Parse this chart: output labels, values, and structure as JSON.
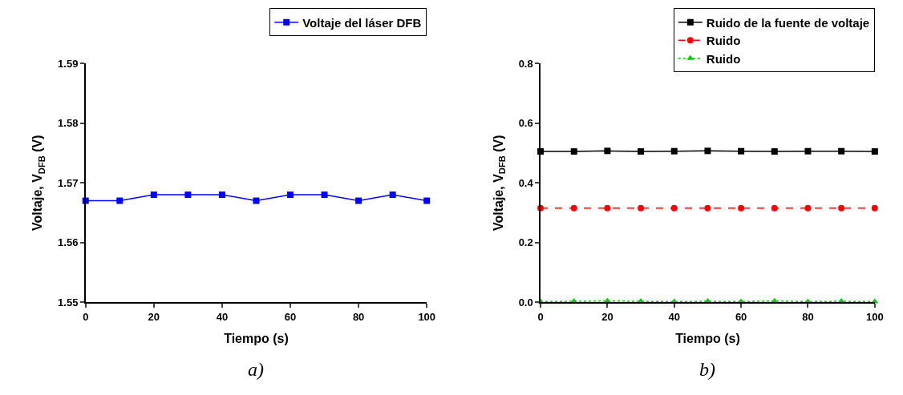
{
  "chart_data": [
    {
      "type": "line",
      "xlabel": "Tiempo (s)",
      "ylabel": "Voltaje, V$_{DFB}$ (V)",
      "annotations": [
        "a)"
      ],
      "x": [
        0,
        10,
        20,
        30,
        40,
        50,
        60,
        70,
        80,
        90,
        100
      ],
      "xlim": [
        0,
        100
      ],
      "xticks": [
        0,
        20,
        40,
        60,
        80,
        100
      ],
      "ylim": [
        1.55,
        1.59
      ],
      "yticks": [
        1.55,
        1.56,
        1.57,
        1.58,
        1.59
      ],
      "legend": "top right",
      "series": [
        {
          "name": "Voltaje del láser DFB",
          "color": "#0000ff",
          "marker": "square",
          "line_style": "solid",
          "values": [
            1.567,
            1.567,
            1.568,
            1.568,
            1.568,
            1.567,
            1.568,
            1.568,
            1.567,
            1.568,
            1.567
          ]
        }
      ]
    },
    {
      "type": "line",
      "xlabel": "Tiempo (s)",
      "ylabel": "Voltaje, V$_{DFB}$ (V)",
      "annotations": [
        "b)"
      ],
      "x": [
        0,
        10,
        20,
        30,
        40,
        50,
        60,
        70,
        80,
        90,
        100
      ],
      "xlim": [
        0,
        100
      ],
      "xticks": [
        0,
        20,
        40,
        60,
        80,
        100
      ],
      "ylim": [
        0,
        0.8
      ],
      "yticks": [
        {
          "value": 0,
          "label": "0.0"
        },
        0.2,
        0.4,
        0.6,
        0.8
      ],
      "legend": "top right",
      "series": [
        {
          "name": "Ruido de la fuente de voltaje",
          "color": "#000000",
          "marker": "square",
          "line_style": "solid",
          "values": [
            0.505,
            0.505,
            0.507,
            0.505,
            0.506,
            0.507,
            0.506,
            0.505,
            0.506,
            0.506,
            0.505
          ]
        },
        {
          "name": "Ruido",
          "color": "#ff0000",
          "marker": "circle",
          "line_style": "dashed",
          "values": [
            0.315,
            0.315,
            0.315,
            0.315,
            0.315,
            0.315,
            0.315,
            0.315,
            0.315,
            0.315,
            0.315
          ]
        },
        {
          "name": "Ruido",
          "color": "#00cc00",
          "marker": "triangle",
          "line_style": "dotted",
          "values": [
            0.002,
            0.003,
            0.004,
            0.003,
            0.002,
            0.003,
            0.002,
            0.004,
            0.002,
            0.003,
            0.002
          ]
        }
      ]
    }
  ]
}
